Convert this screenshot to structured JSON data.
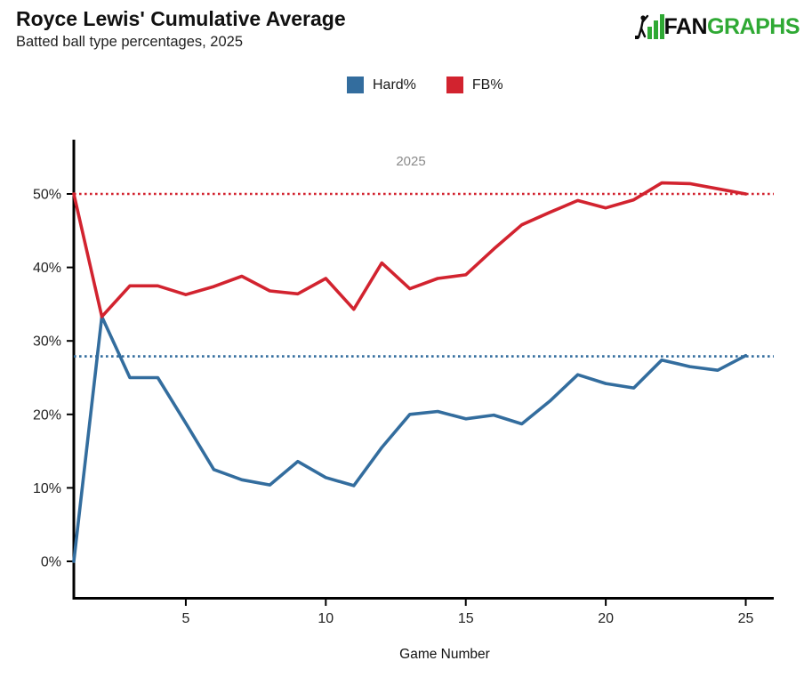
{
  "header": {
    "title": "Royce Lewis' Cumulative Average",
    "subtitle": "Batted ball type percentages, 2025"
  },
  "logo": {
    "fan": "FAN",
    "graphs": "GRAPHS",
    "green": "#2fa934",
    "black": "#0b0b0b"
  },
  "legend": [
    {
      "label": "Hard%",
      "color": "#336d9e"
    },
    {
      "label": "FB%",
      "color": "#d2232f"
    }
  ],
  "chart_data": {
    "type": "line",
    "annotation": "2025",
    "xlabel": "Game Number",
    "x": [
      1,
      2,
      3,
      4,
      5,
      6,
      7,
      8,
      9,
      10,
      11,
      12,
      13,
      14,
      15,
      16,
      17,
      18,
      19,
      20,
      21,
      22,
      23,
      24,
      25
    ],
    "series": [
      {
        "name": "Hard%",
        "color": "#336d9e",
        "values": [
          0,
          33.3,
          25.0,
          25.0,
          18.8,
          12.5,
          11.1,
          10.4,
          13.6,
          11.4,
          10.3,
          15.5,
          20.0,
          20.4,
          19.4,
          19.9,
          18.7,
          21.8,
          25.4,
          24.2,
          23.6,
          27.4,
          26.5,
          26.0,
          28.0
        ]
      },
      {
        "name": "FB%",
        "color": "#d2232f",
        "values": [
          50.0,
          33.3,
          37.5,
          37.5,
          36.3,
          37.4,
          38.8,
          36.8,
          36.4,
          38.5,
          34.3,
          40.6,
          37.1,
          38.5,
          39.0,
          42.5,
          45.8,
          47.5,
          49.1,
          48.1,
          49.2,
          51.5,
          51.4,
          50.7,
          50.0
        ]
      }
    ],
    "reference_lines": [
      {
        "value": 50.0,
        "color": "#d2232f",
        "style": "dotted"
      },
      {
        "value": 27.9,
        "color": "#336d9e",
        "style": "dotted"
      }
    ],
    "x_ticks": [
      5,
      10,
      15,
      20,
      25
    ],
    "x_tick_labels": [
      "5",
      "10",
      "15",
      "20",
      "25"
    ],
    "y_ticks": [
      0,
      10,
      20,
      30,
      40,
      50
    ],
    "y_tick_labels": [
      "0%",
      "10%",
      "20%",
      "30%",
      "40%",
      "50%"
    ],
    "xlim": [
      1,
      26
    ],
    "ylim": [
      -5,
      57.5
    ],
    "grid": false,
    "legend_position": "top-center"
  }
}
